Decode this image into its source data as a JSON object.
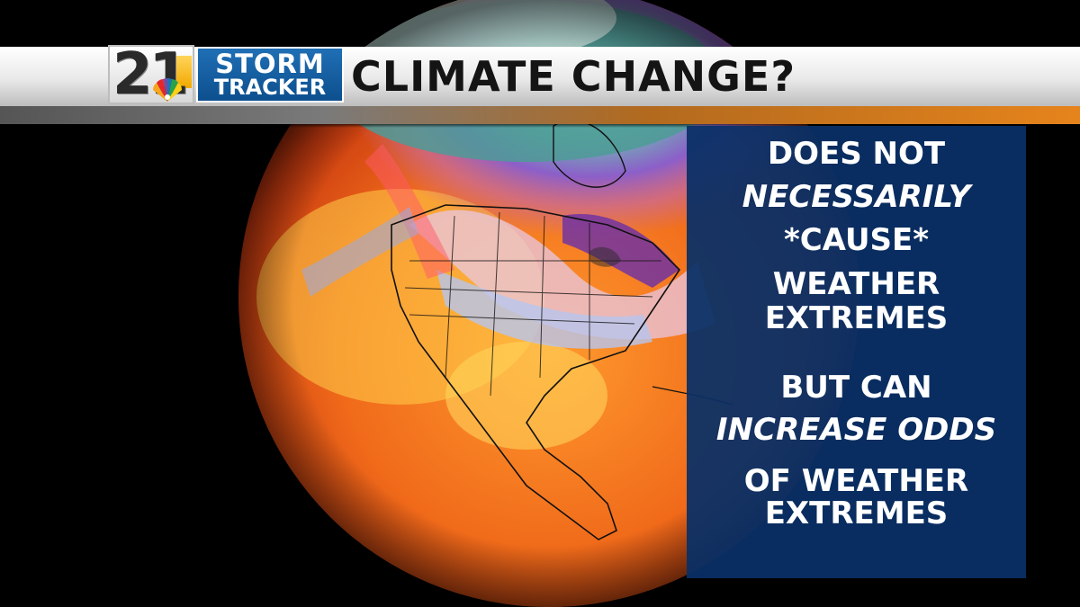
{
  "logo": {
    "number": "21",
    "line1": "STORM",
    "line2": "TRACKER"
  },
  "headline": "CLIMATE CHANGE?",
  "panel": {
    "lines": [
      {
        "text": "DOES NOT",
        "italic": false
      },
      {
        "text": "NECESSARILY",
        "italic": true
      },
      {
        "text": "*CAUSE*",
        "italic": false
      },
      {
        "text": "WEATHER",
        "italic": false
      },
      {
        "text": "EXTREMES",
        "italic": false
      },
      {
        "text": "BUT CAN",
        "italic": false
      },
      {
        "text": "INCREASE ODDS",
        "italic": true
      },
      {
        "text": "OF WEATHER",
        "italic": false
      },
      {
        "text": "EXTREMES",
        "italic": false
      }
    ]
  },
  "colors": {
    "panel_bg": "#0a3066",
    "banner_accent": "#e6841c",
    "logo_blue": "#1f6fb5",
    "logo_gold": "#f2a900"
  }
}
